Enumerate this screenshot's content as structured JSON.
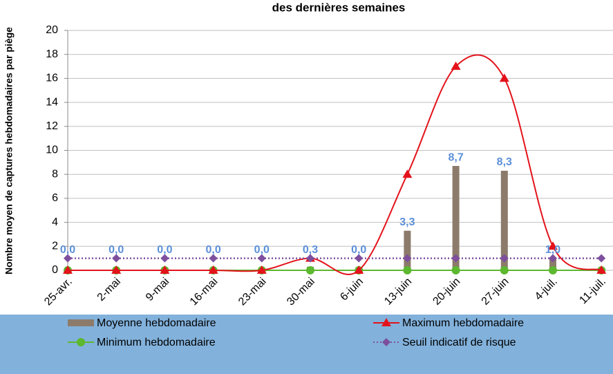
{
  "chart_data": {
    "type": "combo",
    "title": "des dernières semaines",
    "ylabel": "Nombre moyen de captures hebdomadaires par piège",
    "categories": [
      "25-avr.",
      "2-mai",
      "9-mai",
      "16-mai",
      "23-mai",
      "30-mai",
      "6-juin",
      "13-juin",
      "20-juin",
      "27-juin",
      "4-juil.",
      "11-juil."
    ],
    "series": [
      {
        "name": "Moyenne hebdomadaire",
        "kind": "bar",
        "color": "#8c7b6b",
        "values": [
          0,
          0,
          0,
          0,
          0,
          0.3,
          0,
          3.3,
          8.7,
          8.3,
          1.0,
          0
        ],
        "value_labels": [
          "0,0",
          "0,0",
          "0,0",
          "0,0",
          "0,0",
          "0,3",
          "0,0",
          "3,3",
          "8,7",
          "8,3",
          "1,0",
          null
        ]
      },
      {
        "name": "Maximum hebdomadaire",
        "kind": "smooth-line",
        "marker": "triangle",
        "color": "#e3121b",
        "values": [
          0,
          0,
          0,
          0,
          0,
          1,
          0,
          8,
          17,
          16,
          2,
          0
        ]
      },
      {
        "name": "Minimum hebdomadaire",
        "kind": "line",
        "marker": "circle",
        "color": "#5cb82e",
        "values": [
          0,
          0,
          0,
          0,
          0,
          0,
          0,
          0,
          0,
          0,
          0,
          0
        ]
      },
      {
        "name": "Seuil indicatif de risque",
        "kind": "dotted-line",
        "marker": "diamond",
        "color": "#7d4f9c",
        "values": [
          1,
          1,
          1,
          1,
          1,
          1,
          1,
          1,
          1,
          1,
          1,
          1
        ]
      }
    ],
    "ylim": [
      0,
      20
    ],
    "yticks": [
      0,
      2,
      4,
      6,
      8,
      10,
      12,
      14,
      16,
      18,
      20
    ],
    "grid": true,
    "legend": "bottom"
  }
}
